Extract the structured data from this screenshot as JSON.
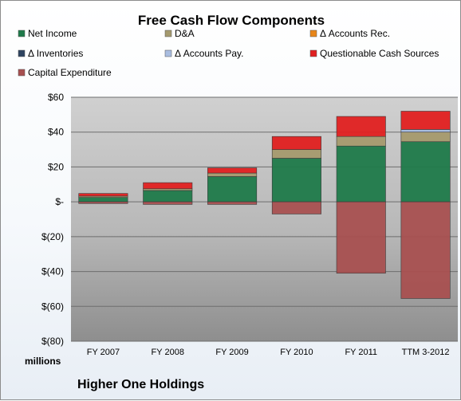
{
  "chart_data": {
    "type": "bar",
    "stacked": true,
    "title": "Free Cash Flow Components",
    "categories": [
      "FY 2007",
      "FY 2008",
      "FY 2009",
      "FY 2010",
      "FY 2011",
      "TTM 3-2012"
    ],
    "series": [
      {
        "name": "Net Income",
        "color": "#1f7a4a",
        "values": [
          2.5,
          6.5,
          14.5,
          25,
          32,
          34.5
        ]
      },
      {
        "name": "D&A",
        "color": "#a59a6e",
        "values": [
          0.8,
          1,
          2,
          5,
          5.5,
          5.5
        ]
      },
      {
        "name": "Δ Accounts Rec.",
        "color": "#e8861a",
        "values": [
          0,
          0,
          0,
          0,
          0,
          0
        ]
      },
      {
        "name": "Δ Inventories",
        "color": "#2e4460",
        "values": [
          0,
          0,
          0,
          0,
          0,
          0
        ]
      },
      {
        "name": "Δ Accounts Pay.",
        "color": "#a9bde0",
        "values": [
          0,
          0,
          0,
          0,
          0,
          1.5
        ]
      },
      {
        "name": "Questionable Cash Sources",
        "color": "#e02020",
        "values": [
          1.5,
          3.5,
          3,
          7.5,
          11.5,
          10.5
        ]
      },
      {
        "name": "Capital Expenditure",
        "color": "#a85050",
        "values": [
          -1,
          -1.5,
          -1.5,
          -7,
          -41,
          -55.5
        ]
      }
    ],
    "ylim": [
      -80,
      60
    ],
    "yticks": [
      60,
      40,
      20,
      0,
      -20,
      -40,
      -60,
      -80
    ],
    "ytick_labels": [
      "$60",
      "$40",
      "$20",
      "$-",
      "$(20)",
      "$(40)",
      "$(60)",
      "$(80)"
    ],
    "grid": true,
    "legend": "top",
    "unit_label": "millions",
    "footer": "Higher One Holdings"
  }
}
